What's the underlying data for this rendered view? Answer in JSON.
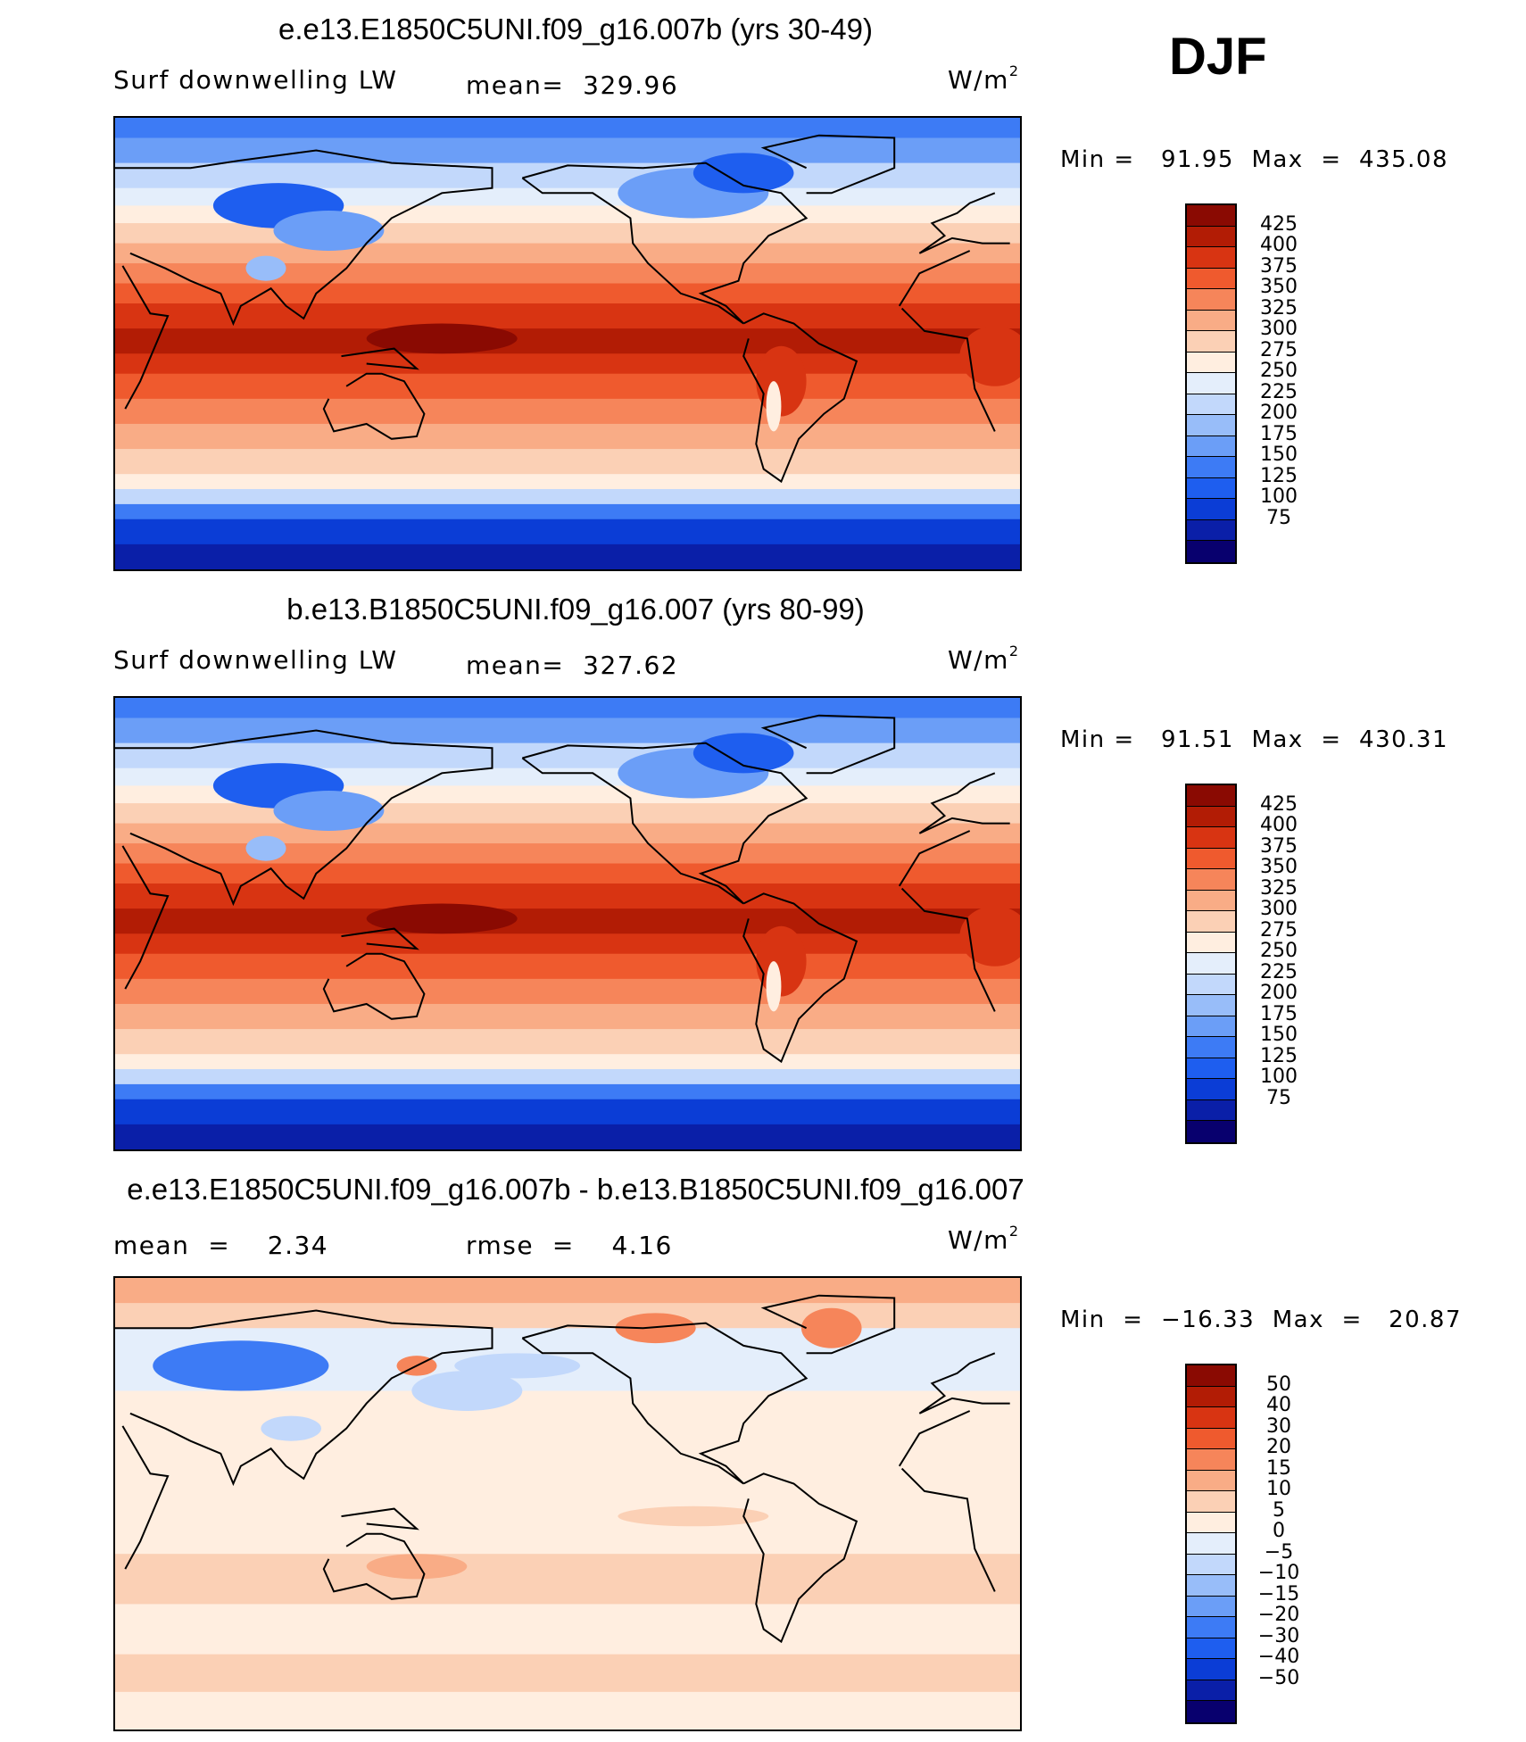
{
  "season": "DJF",
  "units_prefix": "W/m",
  "units_exp": "2",
  "colors": {
    "abs": [
      "#08006e",
      "#0a1fa8",
      "#0b3dd6",
      "#1e5eef",
      "#3d7bf5",
      "#6b9ef7",
      "#98bdf9",
      "#c2d8fb",
      "#e4eefb",
      "#ffeee0",
      "#fbd0b5",
      "#f9ac86",
      "#f6855a",
      "#ef5a2e",
      "#d83412",
      "#b21c05",
      "#8a0a02"
    ],
    "diff": [
      "#08006e",
      "#0a1fa8",
      "#0b3dd6",
      "#1e5eef",
      "#3d7bf5",
      "#6b9ef7",
      "#98bdf9",
      "#c2d8fb",
      "#e4eefb",
      "#ffeee0",
      "#fbd0b5",
      "#f9ac86",
      "#f6855a",
      "#ef5a2e",
      "#d83412",
      "#b21c05",
      "#8a0a02"
    ]
  },
  "panels": [
    {
      "title": "e.e13.E1850C5UNI.f09_g16.007b (yrs 30-49)",
      "left_label": "Surf downwelling LW",
      "center_label": "mean=  329.96",
      "minmax": "Min =   91.95  Max  =  435.08",
      "scale": "abs",
      "ticks": [
        "425",
        "400",
        "375",
        "350",
        "325",
        "300",
        "275",
        "250",
        "225",
        "200",
        "175",
        "150",
        "125",
        "100",
        "75"
      ],
      "mean": 329.96,
      "min": 91.95,
      "max": 435.08
    },
    {
      "title": "b.e13.B1850C5UNI.f09_g16.007 (yrs 80-99)",
      "left_label": "Surf downwelling LW",
      "center_label": "mean=  327.62",
      "minmax": "Min =   91.51  Max  =  430.31",
      "scale": "abs",
      "ticks": [
        "425",
        "400",
        "375",
        "350",
        "325",
        "300",
        "275",
        "250",
        "225",
        "200",
        "175",
        "150",
        "125",
        "100",
        "75"
      ],
      "mean": 327.62,
      "min": 91.51,
      "max": 430.31
    },
    {
      "title": "e.e13.E1850C5UNI.f09_g16.007b - b.e13.B1850C5UNI.f09_g16.007",
      "left_label": "mean  =    2.34",
      "center_label": "rmse  =    4.16",
      "minmax": "Min  =  −16.33  Max  =   20.87",
      "scale": "diff",
      "ticks": [
        "50",
        "40",
        "30",
        "20",
        "15",
        "10",
        "5",
        "0",
        "−5",
        "−10",
        "−15",
        "−20",
        "−30",
        "−40",
        "−50"
      ],
      "mean": 2.34,
      "rmse": 4.16,
      "min": -16.33,
      "max": 20.87
    }
  ]
}
